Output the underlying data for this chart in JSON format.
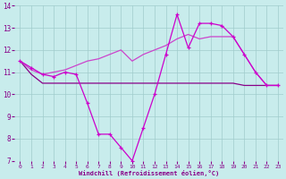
{
  "line1": {
    "x": [
      0,
      1,
      2,
      3,
      4,
      5,
      6,
      7,
      8,
      9,
      10,
      11,
      12,
      13,
      14,
      15,
      16,
      17,
      18,
      19,
      20,
      21,
      22,
      23
    ],
    "y": [
      11.5,
      11.2,
      10.9,
      10.8,
      11.0,
      10.9,
      9.6,
      8.2,
      8.2,
      7.6,
      7.0,
      8.5,
      10.0,
      11.8,
      13.6,
      12.1,
      13.2,
      13.2,
      13.1,
      12.6,
      11.8,
      11.0,
      10.4,
      10.4
    ],
    "color": "#cc00cc",
    "marker": "+"
  },
  "line2": {
    "x": [
      0,
      1,
      2,
      3,
      4,
      5,
      6,
      7,
      8,
      9,
      10,
      11,
      12,
      13,
      14,
      15,
      16,
      17,
      18,
      19,
      20,
      21,
      22,
      23
    ],
    "y": [
      11.5,
      10.9,
      10.5,
      10.5,
      10.5,
      10.5,
      10.5,
      10.5,
      10.5,
      10.5,
      10.5,
      10.5,
      10.5,
      10.5,
      10.5,
      10.5,
      10.5,
      10.5,
      10.5,
      10.5,
      10.4,
      10.4,
      10.4,
      10.4
    ],
    "color": "#880088",
    "marker": null
  },
  "line3": {
    "x": [
      0,
      1,
      2,
      3,
      4,
      5,
      6,
      7,
      8,
      9,
      10,
      11,
      12,
      13,
      14,
      15,
      16,
      17,
      18,
      19,
      20,
      21,
      22,
      23
    ],
    "y": [
      11.5,
      11.1,
      10.9,
      11.0,
      11.1,
      11.3,
      11.5,
      11.6,
      11.8,
      12.0,
      11.5,
      11.8,
      12.0,
      12.2,
      12.5,
      12.7,
      12.5,
      12.6,
      12.6,
      12.6,
      11.8,
      11.0,
      10.4,
      10.4
    ],
    "color": "#cc44cc",
    "marker": null
  },
  "xlabel": "Windchill (Refroidissement éolien,°C)",
  "xlim_min": -0.5,
  "xlim_max": 23.5,
  "ylim_min": 7,
  "ylim_max": 14,
  "yticks": [
    7,
    8,
    9,
    10,
    11,
    12,
    13,
    14
  ],
  "xticks": [
    0,
    1,
    2,
    3,
    4,
    5,
    6,
    7,
    8,
    9,
    10,
    11,
    12,
    13,
    14,
    15,
    16,
    17,
    18,
    19,
    20,
    21,
    22,
    23
  ],
  "bg_color": "#c8ecec",
  "grid_color": "#a0cccc",
  "tick_color": "#880088",
  "label_color": "#880088",
  "figwidth": 3.2,
  "figheight": 2.0,
  "dpi": 100
}
